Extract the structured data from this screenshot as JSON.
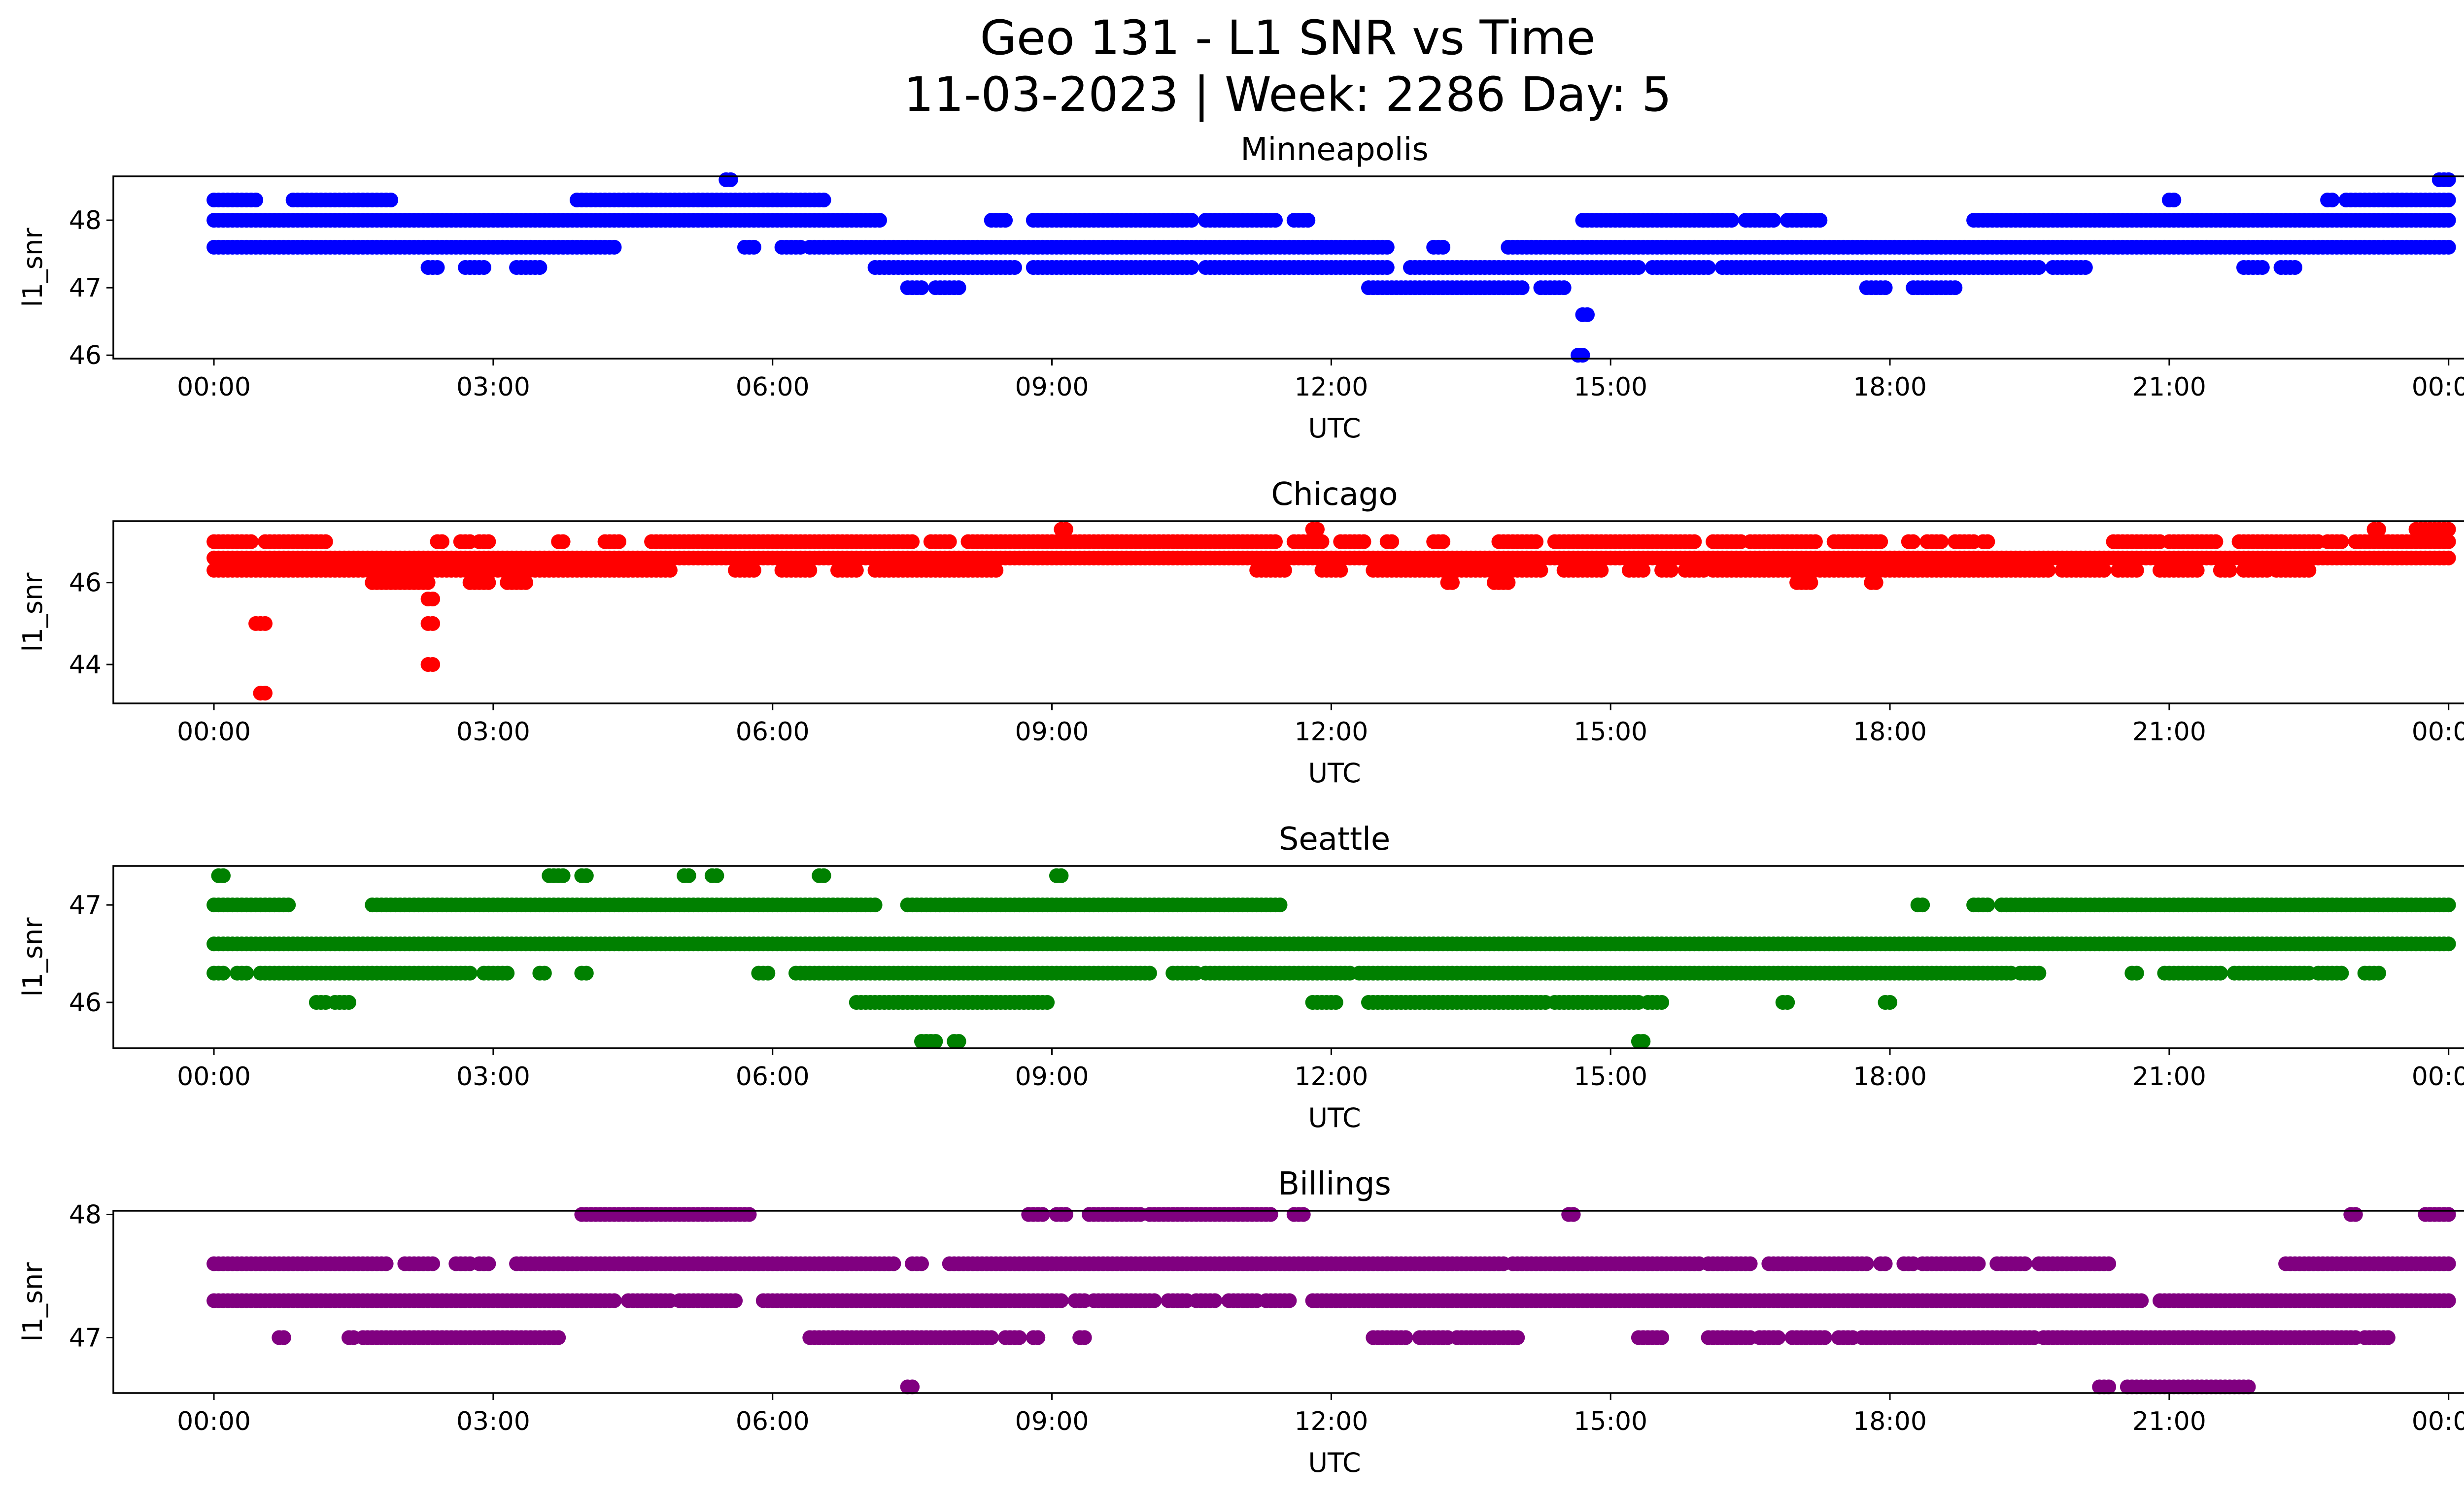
{
  "figure": {
    "title_line1": "Geo 131 - L1 SNR vs Time",
    "title_line2": "11-03-2023 | Week: 2286 Day: 5"
  },
  "chart_data": [
    {
      "type": "scatter",
      "title": "Minneapolis",
      "xlabel": "UTC",
      "ylabel": "l1_snr",
      "color": "#0000ff",
      "xlim": [
        -1.08,
        25.15
      ],
      "ylim": [
        45.95,
        48.65
      ],
      "x_ticks": [
        "00:00",
        "03:00",
        "06:00",
        "09:00",
        "12:00",
        "15:00",
        "18:00",
        "21:00",
        "00:00"
      ],
      "y_ticks": [
        46,
        47,
        48
      ],
      "bands": [
        {
          "y": 48.3,
          "ranges": [
            [
              0.0,
              0.45
            ],
            [
              0.85,
              1.9
            ],
            [
              3.9,
              6.55
            ],
            [
              21.0,
              21.05
            ],
            [
              22.7,
              22.75
            ],
            [
              22.9,
              24.0
            ]
          ]
        },
        {
          "y": 48.0,
          "ranges": [
            [
              0.0,
              7.15
            ],
            [
              8.35,
              8.5
            ],
            [
              8.8,
              10.5
            ],
            [
              10.65,
              11.4
            ],
            [
              11.6,
              11.75
            ],
            [
              14.7,
              16.3
            ],
            [
              16.45,
              16.75
            ],
            [
              16.9,
              17.25
            ],
            [
              18.9,
              24.0
            ]
          ]
        },
        {
          "y": 47.6,
          "ranges": [
            [
              0.0,
              4.3
            ],
            [
              5.7,
              5.8
            ],
            [
              6.1,
              6.3
            ],
            [
              6.4,
              12.6
            ],
            [
              13.1,
              13.2
            ],
            [
              13.9,
              24.0
            ]
          ]
        },
        {
          "y": 47.3,
          "ranges": [
            [
              2.3,
              2.4
            ],
            [
              2.7,
              2.9
            ],
            [
              3.25,
              3.5
            ],
            [
              7.1,
              8.6
            ],
            [
              8.8,
              10.5
            ],
            [
              10.65,
              12.6
            ],
            [
              12.85,
              15.3
            ],
            [
              15.45,
              16.05
            ],
            [
              16.2,
              19.6
            ],
            [
              19.75,
              20.1
            ],
            [
              21.8,
              22.0
            ],
            [
              22.2,
              22.35
            ]
          ]
        },
        {
          "y": 47.0,
          "ranges": [
            [
              7.45,
              7.6
            ],
            [
              7.75,
              8.0
            ],
            [
              12.4,
              14.05
            ],
            [
              14.25,
              14.5
            ],
            [
              17.75,
              17.95
            ],
            [
              18.25,
              18.7
            ]
          ]
        },
        {
          "y": 48.6,
          "ranges": [
            [
              5.5,
              5.55
            ],
            [
              23.9,
              24.0
            ]
          ]
        },
        {
          "y": 46.6,
          "ranges": [
            [
              14.7,
              14.75
            ]
          ]
        },
        {
          "y": 46.0,
          "ranges": [
            [
              14.65,
              14.7
            ]
          ]
        }
      ]
    },
    {
      "type": "scatter",
      "title": "Chicago",
      "xlabel": "UTC",
      "ylabel": "l1_snr",
      "color": "#ff0000",
      "xlim": [
        -1.08,
        25.15
      ],
      "ylim": [
        43.05,
        47.5
      ],
      "x_ticks": [
        "00:00",
        "03:00",
        "06:00",
        "09:00",
        "12:00",
        "15:00",
        "18:00",
        "21:00",
        "00:00"
      ],
      "y_ticks": [
        44,
        46
      ],
      "bands": [
        {
          "y": 47.0,
          "ranges": [
            [
              0.0,
              0.4
            ],
            [
              0.55,
              1.2
            ],
            [
              2.4,
              2.45
            ],
            [
              2.65,
              2.75
            ],
            [
              2.85,
              2.95
            ],
            [
              3.7,
              3.75
            ],
            [
              4.2,
              4.35
            ],
            [
              4.7,
              7.5
            ],
            [
              7.7,
              7.9
            ],
            [
              8.1,
              11.4
            ],
            [
              11.6,
              11.9
            ],
            [
              12.1,
              12.35
            ],
            [
              12.6,
              12.65
            ],
            [
              13.1,
              13.2
            ],
            [
              13.8,
              14.2
            ],
            [
              14.4,
              15.9
            ],
            [
              16.1,
              16.4
            ],
            [
              16.5,
              17.2
            ],
            [
              17.4,
              17.9
            ],
            [
              18.2,
              18.25
            ],
            [
              18.4,
              18.55
            ],
            [
              18.7,
              18.9
            ],
            [
              19.0,
              19.05
            ],
            [
              20.4,
              20.9
            ],
            [
              21.0,
              21.5
            ],
            [
              21.75,
              22.6
            ],
            [
              22.7,
              22.85
            ],
            [
              23.0,
              24.0
            ]
          ]
        },
        {
          "y": 46.6,
          "ranges": [
            [
              0.0,
              24.0
            ]
          ]
        },
        {
          "y": 46.3,
          "ranges": [
            [
              0.0,
              4.9
            ],
            [
              5.6,
              5.8
            ],
            [
              6.1,
              6.4
            ],
            [
              6.7,
              6.9
            ],
            [
              7.1,
              8.4
            ],
            [
              11.2,
              11.5
            ],
            [
              11.9,
              12.1
            ],
            [
              12.45,
              14.25
            ],
            [
              14.5,
              14.9
            ],
            [
              15.2,
              15.35
            ],
            [
              15.55,
              15.65
            ],
            [
              15.8,
              16.0
            ],
            [
              16.1,
              19.7
            ],
            [
              19.85,
              20.3
            ],
            [
              20.45,
              20.65
            ],
            [
              20.9,
              21.3
            ],
            [
              21.55,
              21.65
            ],
            [
              21.8,
              22.05
            ],
            [
              22.15,
              22.5
            ]
          ]
        },
        {
          "y": 46.0,
          "ranges": [
            [
              1.7,
              2.3
            ],
            [
              2.75,
              2.95
            ],
            [
              3.15,
              3.35
            ],
            [
              13.25,
              13.3
            ],
            [
              13.75,
              13.9
            ],
            [
              17.0,
              17.15
            ],
            [
              17.8,
              17.85
            ]
          ]
        },
        {
          "y": 45.6,
          "ranges": [
            [
              2.3,
              2.35
            ]
          ]
        },
        {
          "y": 45.0,
          "ranges": [
            [
              0.45,
              0.55
            ],
            [
              2.3,
              2.35
            ]
          ]
        },
        {
          "y": 44.0,
          "ranges": [
            [
              2.3,
              2.35
            ]
          ]
        },
        {
          "y": 43.3,
          "ranges": [
            [
              0.5,
              0.55
            ]
          ]
        },
        {
          "y": 47.3,
          "ranges": [
            [
              9.1,
              9.15
            ],
            [
              11.8,
              11.85
            ],
            [
              23.2,
              23.25
            ],
            [
              23.65,
              24.0
            ]
          ]
        }
      ]
    },
    {
      "type": "scatter",
      "title": "Seattle",
      "xlabel": "UTC",
      "ylabel": "l1_snr",
      "color": "#008000",
      "xlim": [
        -1.08,
        25.15
      ],
      "ylim": [
        45.53,
        47.4
      ],
      "x_ticks": [
        "00:00",
        "03:00",
        "06:00",
        "09:00",
        "12:00",
        "15:00",
        "18:00",
        "21:00",
        "00:00"
      ],
      "y_ticks": [
        46,
        47
      ],
      "bands": [
        {
          "y": 47.3,
          "ranges": [
            [
              0.05,
              0.1
            ],
            [
              3.6,
              3.75
            ],
            [
              3.95,
              4.0
            ],
            [
              5.05,
              5.1
            ],
            [
              5.35,
              5.4
            ],
            [
              6.5,
              6.55
            ],
            [
              9.05,
              9.1
            ]
          ]
        },
        {
          "y": 47.0,
          "ranges": [
            [
              0.0,
              0.8
            ],
            [
              1.7,
              7.1
            ],
            [
              7.45,
              11.45
            ],
            [
              18.3,
              18.35
            ],
            [
              18.9,
              19.05
            ],
            [
              19.2,
              21.0
            ],
            [
              21.05,
              24.0
            ]
          ]
        },
        {
          "y": 46.6,
          "ranges": [
            [
              0.0,
              24.0
            ]
          ]
        },
        {
          "y": 46.3,
          "ranges": [
            [
              0.0,
              0.1
            ],
            [
              0.25,
              0.35
            ],
            [
              0.5,
              0.6
            ],
            [
              0.65,
              2.75
            ],
            [
              2.9,
              3.15
            ],
            [
              3.5,
              3.55
            ],
            [
              3.95,
              4.0
            ],
            [
              5.85,
              5.95
            ],
            [
              6.25,
              9.85
            ],
            [
              9.9,
              10.05
            ],
            [
              10.3,
              10.55
            ],
            [
              10.65,
              12.2
            ],
            [
              12.3,
              19.3
            ],
            [
              19.4,
              19.6
            ],
            [
              20.6,
              20.65
            ],
            [
              20.95,
              21.55
            ],
            [
              21.7,
              22.5
            ],
            [
              22.6,
              22.85
            ],
            [
              23.1,
              23.25
            ]
          ]
        },
        {
          "y": 46.0,
          "ranges": [
            [
              1.1,
              1.2
            ],
            [
              1.3,
              1.45
            ],
            [
              6.9,
              8.95
            ],
            [
              11.8,
              12.05
            ],
            [
              12.4,
              14.3
            ],
            [
              14.4,
              15.3
            ],
            [
              15.4,
              15.55
            ],
            [
              16.85,
              16.9
            ],
            [
              17.95,
              18.0
            ]
          ]
        },
        {
          "y": 45.6,
          "ranges": [
            [
              7.6,
              7.75
            ],
            [
              7.95,
              8.0
            ],
            [
              15.3,
              15.35
            ]
          ]
        }
      ]
    },
    {
      "type": "scatter",
      "title": "Billings",
      "xlabel": "UTC",
      "ylabel": "l1_snr",
      "color": "#800080",
      "xlim": [
        -1.08,
        25.15
      ],
      "ylim": [
        46.55,
        48.03
      ],
      "x_ticks": [
        "00:00",
        "03:00",
        "06:00",
        "09:00",
        "12:00",
        "15:00",
        "18:00",
        "21:00",
        "00:00"
      ],
      "y_ticks": [
        47,
        48
      ],
      "bands": [
        {
          "y": 48.0,
          "ranges": [
            [
              3.95,
              5.75
            ],
            [
              8.75,
              8.9
            ],
            [
              9.05,
              9.15
            ],
            [
              9.4,
              9.95
            ],
            [
              10.05,
              11.35
            ],
            [
              11.6,
              11.7
            ],
            [
              14.55,
              14.6
            ],
            [
              22.95,
              23.0
            ],
            [
              23.75,
              24.0
            ]
          ]
        },
        {
          "y": 47.6,
          "ranges": [
            [
              0.0,
              1.85
            ],
            [
              2.05,
              2.35
            ],
            [
              2.6,
              2.75
            ],
            [
              2.85,
              2.95
            ],
            [
              3.25,
              7.3
            ],
            [
              7.5,
              7.6
            ],
            [
              7.9,
              12.6
            ],
            [
              12.6,
              13.85
            ],
            [
              13.95,
              15.95
            ],
            [
              16.05,
              16.5
            ],
            [
              16.7,
              17.75
            ],
            [
              17.9,
              17.95
            ],
            [
              18.15,
              18.25
            ],
            [
              18.35,
              18.95
            ],
            [
              19.15,
              19.45
            ],
            [
              19.6,
              20.1
            ],
            [
              20.15,
              20.35
            ],
            [
              22.25,
              24.0
            ]
          ]
        },
        {
          "y": 47.3,
          "ranges": [
            [
              0.0,
              4.3
            ],
            [
              4.45,
              4.9
            ],
            [
              5.0,
              5.6
            ],
            [
              5.9,
              9.1
            ],
            [
              9.25,
              9.35
            ],
            [
              9.45,
              10.1
            ],
            [
              10.25,
              10.45
            ],
            [
              10.55,
              10.75
            ],
            [
              10.9,
              11.2
            ],
            [
              11.3,
              11.55
            ],
            [
              11.8,
              20.7
            ],
            [
              20.9,
              24.0
            ]
          ]
        },
        {
          "y": 47.0,
          "ranges": [
            [
              0.7,
              0.75
            ],
            [
              1.45,
              1.5
            ],
            [
              1.6,
              3.7
            ],
            [
              6.4,
              8.35
            ],
            [
              8.5,
              8.65
            ],
            [
              8.8,
              8.85
            ],
            [
              9.3,
              9.35
            ],
            [
              12.45,
              12.8
            ],
            [
              12.95,
              13.25
            ],
            [
              13.35,
              14.0
            ],
            [
              15.3,
              15.55
            ],
            [
              16.05,
              16.5
            ],
            [
              16.6,
              16.8
            ],
            [
              16.95,
              17.3
            ],
            [
              17.45,
              17.6
            ],
            [
              17.7,
              19.55
            ],
            [
              19.65,
              21.05
            ],
            [
              21.1,
              23.0
            ],
            [
              23.1,
              23.35
            ]
          ]
        },
        {
          "y": 46.6,
          "ranges": [
            [
              7.45,
              7.5
            ],
            [
              20.25,
              20.35
            ],
            [
              20.55,
              21.85
            ]
          ]
        }
      ]
    }
  ]
}
